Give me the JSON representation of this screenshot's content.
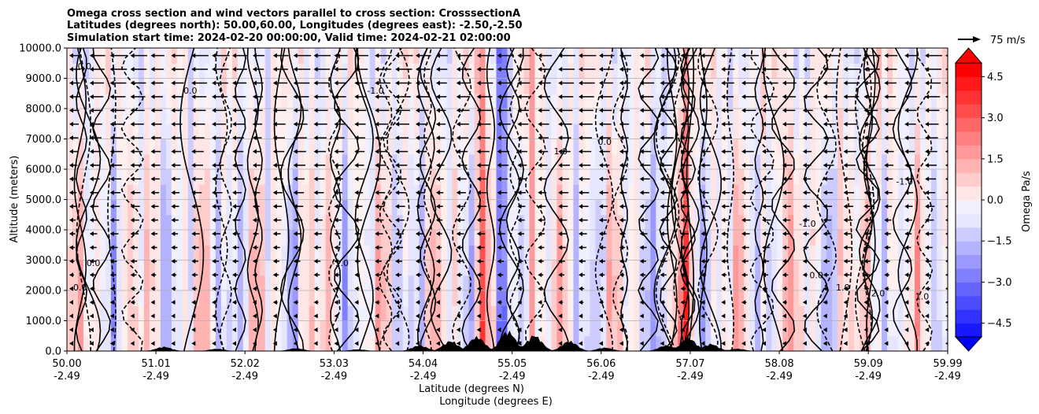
{
  "chart_data": {
    "type": "heatmap",
    "title_lines": [
      "Omega cross section and wind vectors parallel to cross section: CrosssectionA",
      "Latitudes (degrees north): 50.00,60.00, Longitudes (degrees east): -2.50,-2.50",
      "Simulation start time: 2024-02-20 00:00:00, Valid time: 2024-02-21 02:00:00"
    ],
    "ylabel": "Altitude (meters)",
    "xlabel_lat": "Latitude (degrees N)",
    "xlabel_lon": "Longitude (degrees E)",
    "ylim": [
      0,
      10000
    ],
    "yticks": [
      "0.0",
      "1000.0",
      "2000.0",
      "3000.0",
      "4000.0",
      "5000.0",
      "6000.0",
      "7000.0",
      "8000.0",
      "9000.0",
      "10000.0"
    ],
    "xlim": [
      50.0,
      59.99
    ],
    "xticks": [
      {
        "lat": "50.00",
        "lon": "-2.49",
        "value": 50.0
      },
      {
        "lat": "51.01",
        "lon": "-2.49",
        "value": 51.01
      },
      {
        "lat": "52.02",
        "lon": "-2.49",
        "value": 52.02
      },
      {
        "lat": "53.03",
        "lon": "-2.49",
        "value": 53.03
      },
      {
        "lat": "54.04",
        "lon": "-2.49",
        "value": 54.04
      },
      {
        "lat": "55.05",
        "lon": "-2.49",
        "value": 55.05
      },
      {
        "lat": "56.06",
        "lon": "-2.49",
        "value": 56.06
      },
      {
        "lat": "57.07",
        "lon": "-2.49",
        "value": 57.07
      },
      {
        "lat": "58.08",
        "lon": "-2.49",
        "value": 58.08
      },
      {
        "lat": "59.09",
        "lon": "-2.49",
        "value": 59.09
      },
      {
        "lat": "59.99",
        "lon": "-2.49",
        "value": 59.99
      }
    ],
    "colorbar": {
      "label": "Omega Pa/s",
      "range": [
        -5.0,
        5.0
      ],
      "ticks": [
        "4.5",
        "3.0",
        "1.5",
        "0.0",
        "−1.5",
        "−3.0",
        "−4.5"
      ],
      "tick_values": [
        4.5,
        3.0,
        1.5,
        0.0,
        -1.5,
        -3.0,
        -4.5
      ],
      "colormap": "bwr",
      "extend": "both"
    },
    "quiver_key": "75 m/s",
    "contour_labels": [
      {
        "text": "0.0",
        "lat": 51.4,
        "alt": 8500
      },
      {
        "text": "-1.0",
        "lat": 53.5,
        "alt": 8500
      },
      {
        "text": "-1.0",
        "lat": 53.1,
        "alt": 2800
      },
      {
        "text": "-1.0",
        "lat": 58.4,
        "alt": 4100
      },
      {
        "text": "-1.0",
        "lat": 59.5,
        "alt": 5500
      },
      {
        "text": "0.0",
        "lat": 50.2,
        "alt": 9300
      },
      {
        "text": "0.0",
        "lat": 50.3,
        "alt": 2800
      },
      {
        "text": "0.0",
        "lat": 50.15,
        "alt": 2000
      },
      {
        "text": "0.0",
        "lat": 58.5,
        "alt": 2400
      },
      {
        "text": "0.0",
        "lat": 56.1,
        "alt": 6800
      },
      {
        "text": "1.0",
        "lat": 55.6,
        "alt": 6500
      },
      {
        "text": "1.0",
        "lat": 58.8,
        "alt": 2000
      },
      {
        "text": "2.0",
        "lat": 59.2,
        "alt": 1800
      },
      {
        "text": "1.0",
        "lat": 59.7,
        "alt": 1700
      }
    ],
    "terrain_peaks_m": [
      {
        "lat": 51.1,
        "alt": 150
      },
      {
        "lat": 51.7,
        "alt": 80
      },
      {
        "lat": 52.6,
        "alt": 100
      },
      {
        "lat": 53.3,
        "alt": 60
      },
      {
        "lat": 54.0,
        "alt": 200
      },
      {
        "lat": 54.35,
        "alt": 350
      },
      {
        "lat": 54.65,
        "alt": 500
      },
      {
        "lat": 55.0,
        "alt": 700
      },
      {
        "lat": 55.3,
        "alt": 550
      },
      {
        "lat": 55.7,
        "alt": 350
      },
      {
        "lat": 56.1,
        "alt": 120
      },
      {
        "lat": 56.8,
        "alt": 200
      },
      {
        "lat": 57.05,
        "alt": 450
      },
      {
        "lat": 57.3,
        "alt": 250
      },
      {
        "lat": 57.6,
        "alt": 80
      }
    ]
  }
}
